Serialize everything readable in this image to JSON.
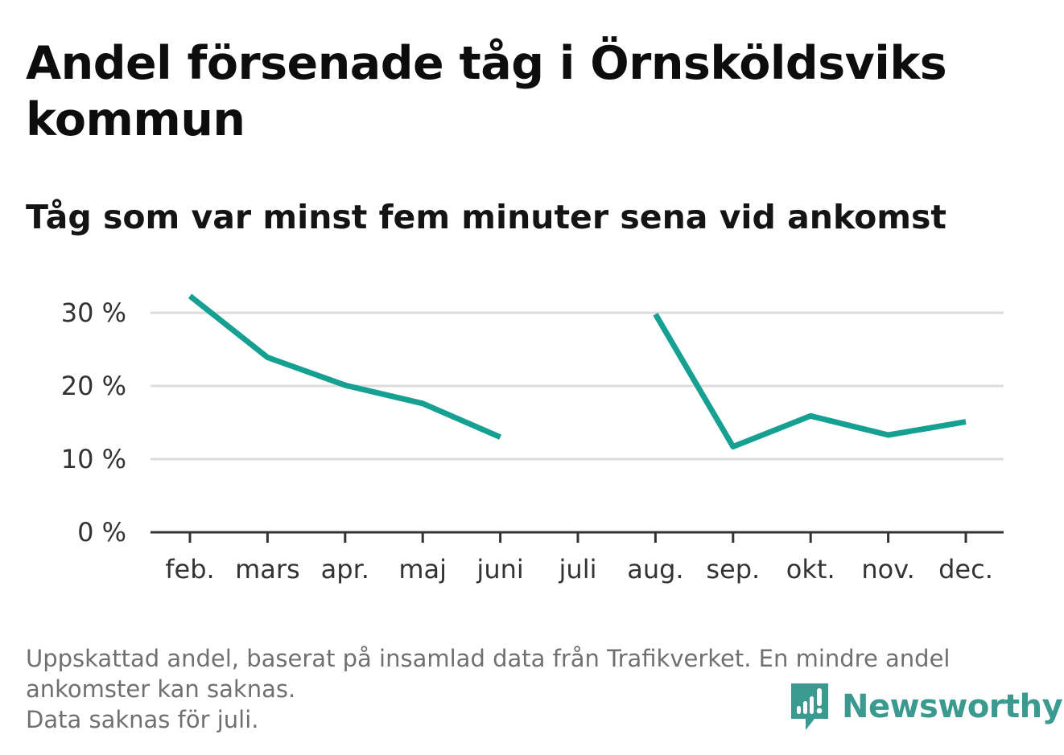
{
  "header": {
    "title": "Andel försenade tåg i Örnsköldsviks kommun",
    "subtitle": "Tåg som var minst fem minuter sena vid ankomst"
  },
  "chart_data": {
    "type": "line",
    "categories": [
      "feb.",
      "mars",
      "apr.",
      "maj",
      "juni",
      "juli",
      "aug.",
      "sep.",
      "okt.",
      "nov.",
      "dec."
    ],
    "series": [
      {
        "values": [
          32.3,
          23.9,
          20.1,
          17.6,
          13.0,
          null,
          29.8,
          11.7,
          15.9,
          13.3,
          15.1
        ]
      }
    ],
    "y_ticks": [
      {
        "value": 0,
        "label": "0 %"
      },
      {
        "value": 10,
        "label": "10 %"
      },
      {
        "value": 20,
        "label": "20 %"
      },
      {
        "value": 30,
        "label": "30 %"
      }
    ],
    "ylim": [
      0,
      33
    ],
    "grid": true,
    "colors": {
      "line": "#16a092",
      "grid": "#dddddd",
      "axis": "#333333"
    }
  },
  "footnote": {
    "line1": "Uppskattad andel, baserat på insamlad data från Trafikverket. En mindre andel ankomster kan saknas.",
    "line2": "Data saknas för juli."
  },
  "brand": {
    "name": "Newsworthy",
    "icon": "newsworthy-logo-icon",
    "color": "#3a9a90"
  }
}
